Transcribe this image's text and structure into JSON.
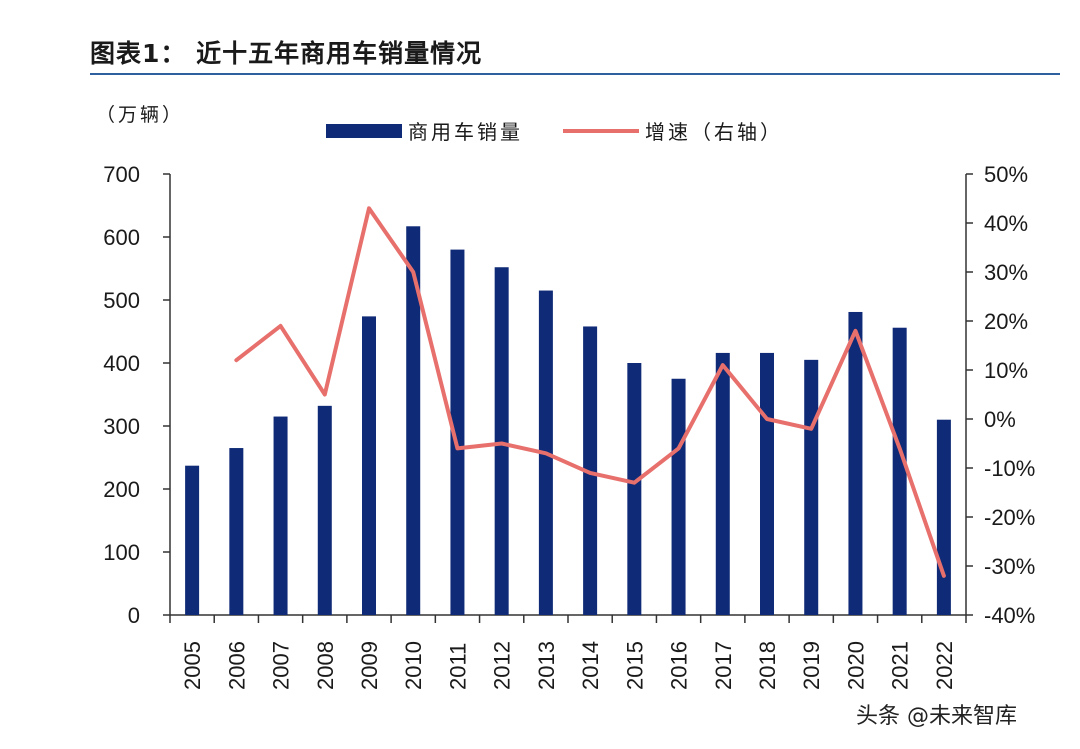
{
  "figure": {
    "title": "图表1：  近十五年商用车销量情况",
    "unit_label": "（万辆）"
  },
  "watermark": "头条 @未来智库",
  "colors": {
    "bar": "#0f2a76",
    "line": "#e8706c",
    "rule": "#2e5f9e"
  },
  "chart_data": {
    "type": "bar+line",
    "categories": [
      "2005",
      "2006",
      "2007",
      "2008",
      "2009",
      "2010",
      "2011",
      "2012",
      "2013",
      "2014",
      "2015",
      "2016",
      "2017",
      "2018",
      "2019",
      "2020",
      "2021",
      "2022"
    ],
    "series": [
      {
        "name": "商用车销量",
        "type": "bar",
        "axis": "left",
        "values": [
          237,
          265,
          315,
          332,
          474,
          617,
          580,
          552,
          515,
          458,
          400,
          375,
          416,
          416,
          405,
          481,
          456,
          310
        ]
      },
      {
        "name": "增速（右轴）",
        "type": "line",
        "axis": "right",
        "values": [
          null,
          12,
          19,
          5,
          43,
          30,
          -6,
          -5,
          -7,
          -11,
          -13,
          -6,
          11,
          0,
          -2,
          18,
          -6,
          -32
        ]
      }
    ],
    "y_left": {
      "min": 0,
      "max": 700,
      "step": 100,
      "ticks": [
        "0",
        "100",
        "200",
        "300",
        "400",
        "500",
        "600",
        "700"
      ]
    },
    "y_right": {
      "min": -40,
      "max": 50,
      "step": 10,
      "ticks": [
        "-40%",
        "-30%",
        "-20%",
        "-10%",
        "0%",
        "10%",
        "20%",
        "30%",
        "40%",
        "50%"
      ]
    },
    "legend": [
      "商用车销量",
      "增速（右轴）"
    ],
    "legend_position": "top-center"
  }
}
